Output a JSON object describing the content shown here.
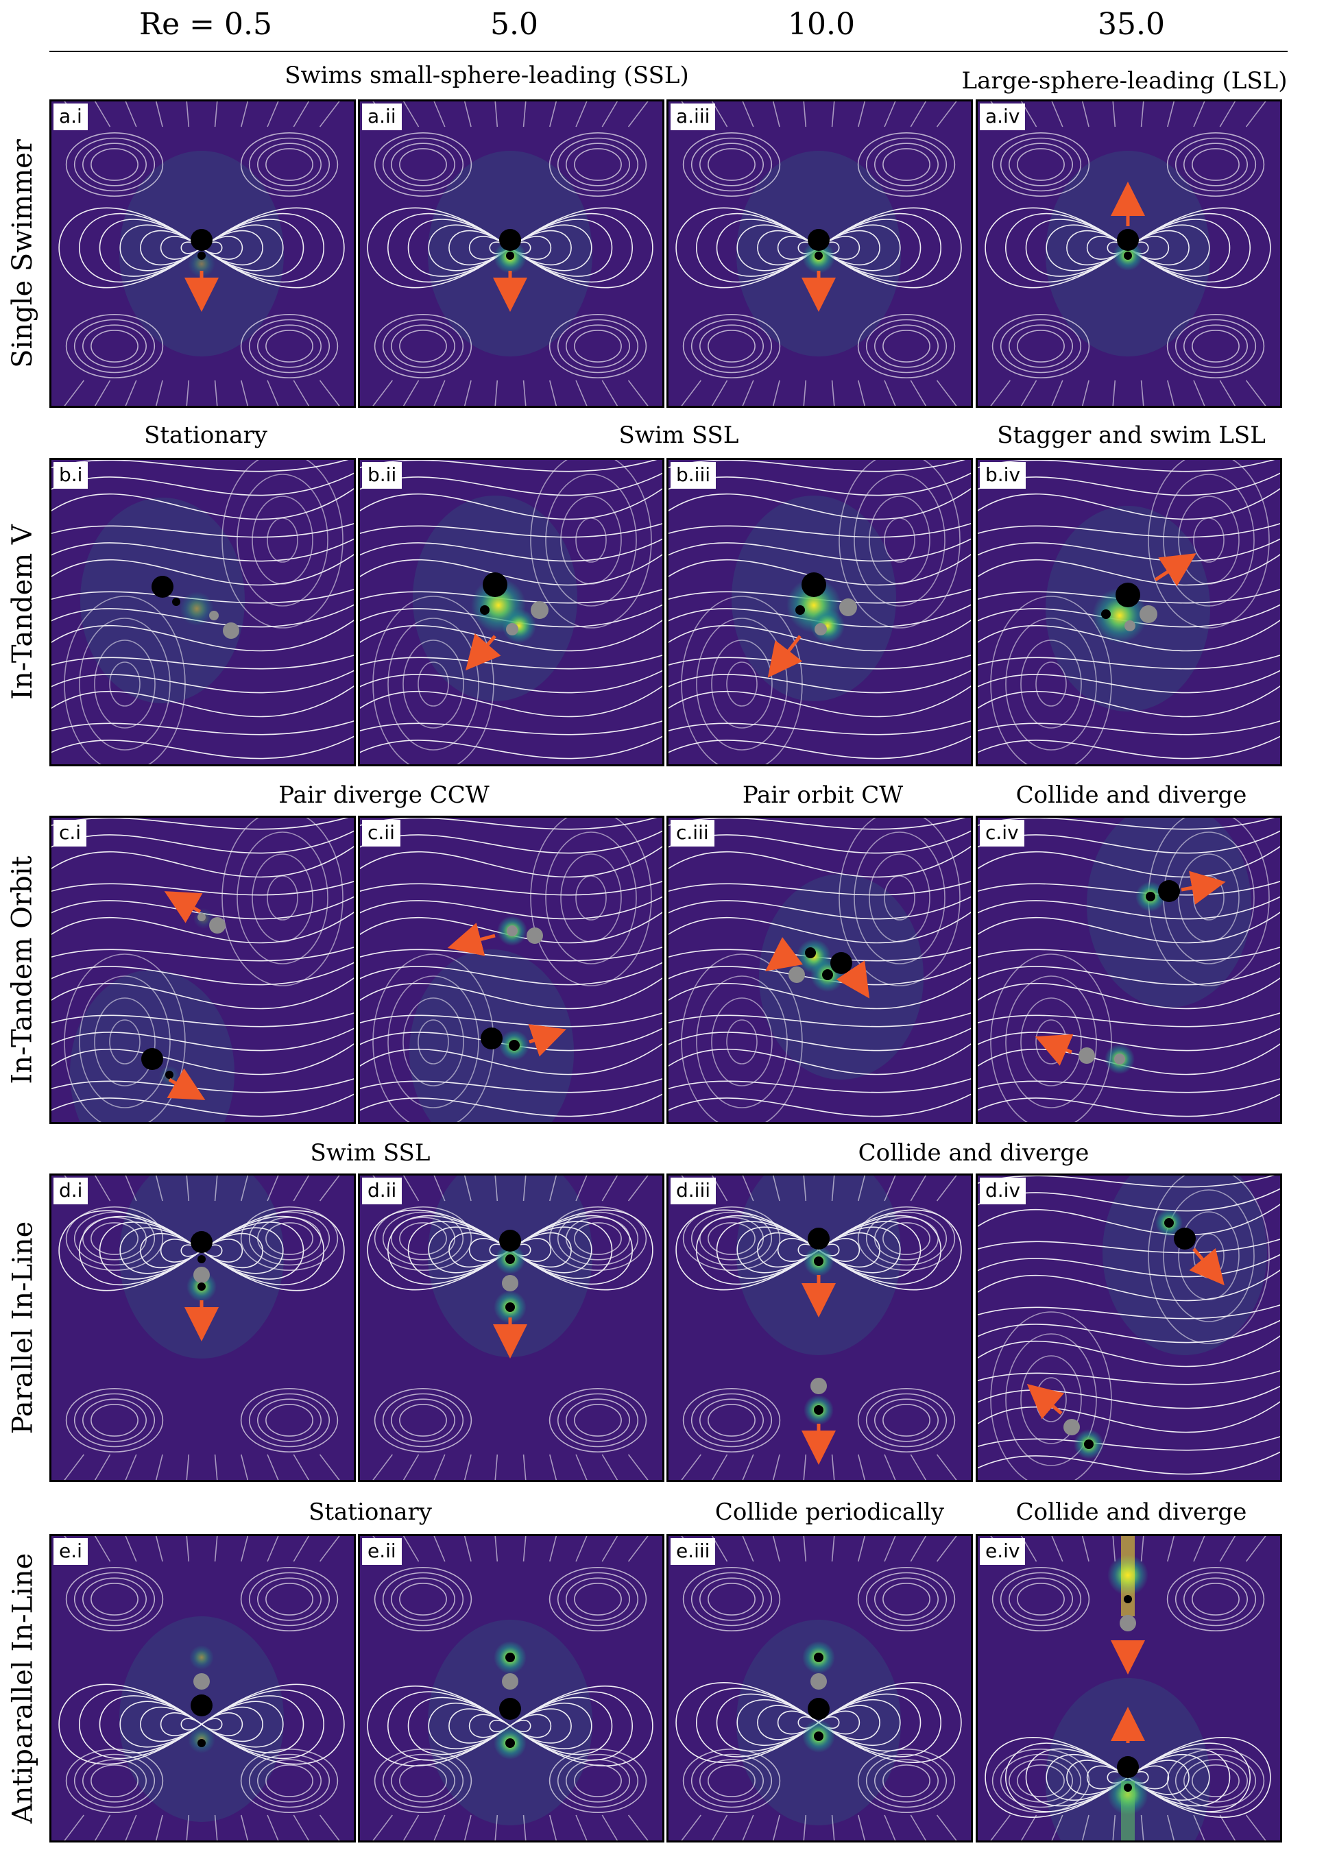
{
  "columns": [
    "Re = 0.5",
    "5.0",
    "10.0",
    "35.0"
  ],
  "rows": [
    {
      "label": "Single Swimmer",
      "captions": [
        "Swims small-sphere-leading (SSL)",
        "Large-sphere-leading (LSL)"
      ],
      "panels": [
        "a.i",
        "a.ii",
        "a.iii",
        "a.iv"
      ]
    },
    {
      "label": "In-Tandem V",
      "captions": [
        "Stationary",
        "Swim SSL",
        "Stagger and swim LSL"
      ],
      "panels": [
        "b.i",
        "b.ii",
        "b.iii",
        "b.iv"
      ]
    },
    {
      "label": "In-Tandem Orbit",
      "captions": [
        "Pair diverge CCW",
        "Pair orbit CW",
        "Collide and diverge"
      ],
      "panels": [
        "c.i",
        "c.ii",
        "c.iii",
        "c.iv"
      ]
    },
    {
      "label": "Parallel In-Line",
      "captions": [
        "Swim SSL",
        "Collide and diverge"
      ],
      "panels": [
        "d.i",
        "d.ii",
        "d.iii",
        "d.iv"
      ]
    },
    {
      "label": "Antiparallel In-Line",
      "captions": [
        "Stationary",
        "Collide periodically",
        "Collide and diverge"
      ],
      "panels": [
        "e.i",
        "e.ii",
        "e.iii",
        "e.iv"
      ]
    }
  ],
  "colors": {
    "background": "#3e1a74",
    "streamline": "#ffffff",
    "arrow": "#f05a28",
    "large_sphere": "#000000",
    "small_sphere": "#000000",
    "partner_sphere": "#8c8c8c",
    "hot": "#fde725",
    "warm": "#5ec962",
    "mid": "#21918c"
  }
}
